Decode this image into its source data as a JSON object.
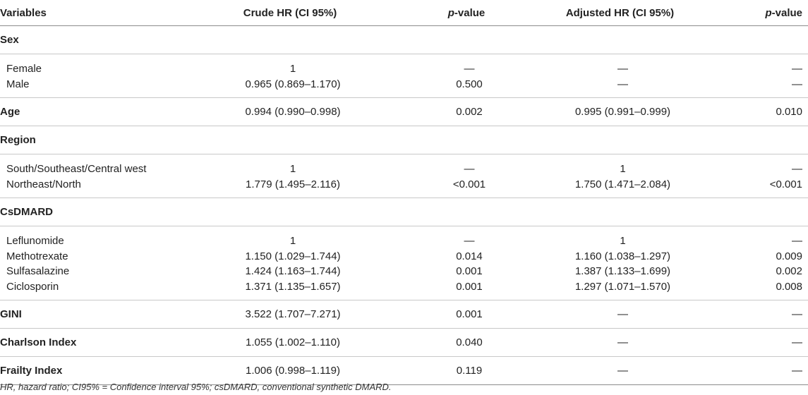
{
  "header": {
    "variables": "Variables",
    "crude": "Crude HR (CI 95%)",
    "p_italic": "p",
    "p_rest": "-value",
    "adjusted": "Adjusted HR (CI 95%)"
  },
  "sex": {
    "label": "Sex",
    "female": {
      "label": "Female",
      "crude": "1",
      "p1": "—",
      "adj": "—",
      "p2": "—"
    },
    "male": {
      "label": "Male",
      "crude": "0.965 (0.869–1.170)",
      "p1": "0.500",
      "adj": "—",
      "p2": "—"
    }
  },
  "age": {
    "label": "Age",
    "crude": "0.994 (0.990–0.998)",
    "p1": "0.002",
    "adj": "0.995 (0.991–0.999)",
    "p2": "0.010"
  },
  "region": {
    "label": "Region",
    "south": {
      "label": "South/Southeast/Central west",
      "crude": "1",
      "p1": "—",
      "adj": "1",
      "p2": "—"
    },
    "northeast": {
      "label": "Northeast/North",
      "crude": "1.779 (1.495–2.116)",
      "p1": "<0.001",
      "adj": "1.750 (1.471–2.084)",
      "p2": "<0.001"
    }
  },
  "csdmard": {
    "label": "CsDMARD",
    "leflunomide": {
      "label": "Leflunomide",
      "crude": "1",
      "p1": "—",
      "adj": "1",
      "p2": "—"
    },
    "methotrexate": {
      "label": "Methotrexate",
      "crude": "1.150 (1.029–1.744)",
      "p1": "0.014",
      "adj": "1.160 (1.038–1.297)",
      "p2": "0.009"
    },
    "sulfasalazine": {
      "label": "Sulfasalazine",
      "crude": "1.424 (1.163–1.744)",
      "p1": "0.001",
      "adj": "1.387 (1.133–1.699)",
      "p2": "0.002"
    },
    "ciclosporin": {
      "label": "Ciclosporin",
      "crude": "1.371 (1.135–1.657)",
      "p1": "0.001",
      "adj": "1.297 (1.071–1.570)",
      "p2": "0.008"
    }
  },
  "gini": {
    "label": "GINI",
    "crude": "3.522 (1.707–7.271)",
    "p1": "0.001",
    "adj": "—",
    "p2": "—"
  },
  "charlson": {
    "label": "Charlson Index",
    "crude": "1.055 (1.002–1.110)",
    "p1": "0.040",
    "adj": "—",
    "p2": "—"
  },
  "frailty": {
    "label": "Frailty Index",
    "crude": "1.006 (0.998–1.119)",
    "p1": "0.119",
    "adj": "—",
    "p2": "—"
  },
  "footnote": "HR, hazard ratio; CI95% = Confidence interval 95%; csDMARD, conventional synthetic DMARD."
}
